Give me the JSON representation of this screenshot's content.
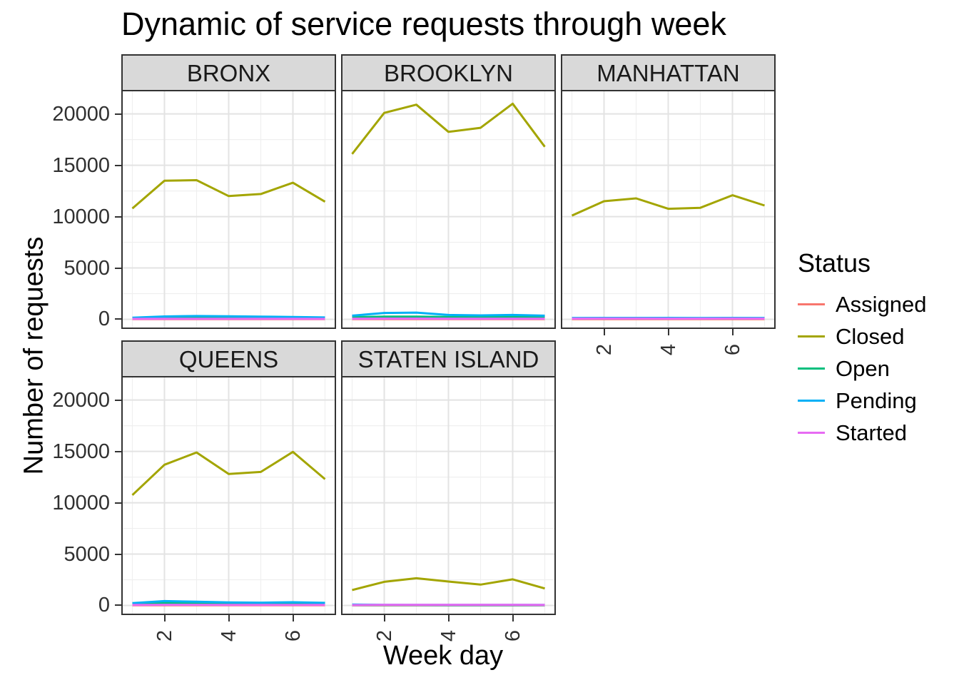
{
  "title": "Dynamic of service requests through week",
  "axes": {
    "x_label": "Week day",
    "y_label": "Number of requests"
  },
  "legend": {
    "title": "Status",
    "entries": [
      {
        "label": "Assigned",
        "color": "#F8766D"
      },
      {
        "label": "Closed",
        "color": "#A3A500"
      },
      {
        "label": "Open",
        "color": "#00BF7D"
      },
      {
        "label": "Pending",
        "color": "#00B0F6"
      },
      {
        "label": "Started",
        "color": "#E76BF3"
      }
    ]
  },
  "chart_data": {
    "type": "line",
    "title": "Dynamic of service requests through week",
    "xlabel": "Week day",
    "ylabel": "Number of requests",
    "x": [
      1,
      2,
      3,
      4,
      5,
      6,
      7
    ],
    "xlim": [
      0.7,
      7.3
    ],
    "ylim": [
      -800,
      22200
    ],
    "x_major_ticks": [
      2,
      4,
      6
    ],
    "x_minor_ticks": [
      1,
      3,
      5,
      7
    ],
    "y_major_ticks": [
      0,
      5000,
      10000,
      15000,
      20000
    ],
    "y_minor_ticks": [
      2500,
      7500,
      12500,
      17500
    ],
    "grid": true,
    "legend_position": "right",
    "facets": [
      {
        "name": "BRONX",
        "series": [
          {
            "name": "Assigned",
            "values": [
              10,
              15,
              15,
              15,
              15,
              10,
              10
            ]
          },
          {
            "name": "Closed",
            "values": [
              10800,
              13500,
              13550,
              12000,
              12200,
              13300,
              11450
            ]
          },
          {
            "name": "Open",
            "values": [
              90,
              130,
              140,
              130,
              120,
              110,
              90
            ]
          },
          {
            "name": "Pending",
            "values": [
              150,
              280,
              320,
              300,
              260,
              230,
              180
            ]
          },
          {
            "name": "Started",
            "values": [
              40,
              50,
              55,
              50,
              50,
              45,
              40
            ]
          }
        ]
      },
      {
        "name": "BROOKLYN",
        "series": [
          {
            "name": "Assigned",
            "values": [
              15,
              20,
              20,
              15,
              15,
              15,
              15
            ]
          },
          {
            "name": "Closed",
            "values": [
              16100,
              20100,
              20900,
              18250,
              18650,
              21000,
              16800
            ]
          },
          {
            "name": "Open",
            "values": [
              200,
              260,
              260,
              230,
              220,
              230,
              200
            ]
          },
          {
            "name": "Pending",
            "values": [
              350,
              620,
              650,
              420,
              380,
              420,
              350
            ]
          },
          {
            "name": "Started",
            "values": [
              60,
              70,
              70,
              65,
              65,
              65,
              60
            ]
          }
        ]
      },
      {
        "name": "MANHATTAN",
        "series": [
          {
            "name": "Assigned",
            "values": [
              10,
              10,
              10,
              10,
              10,
              10,
              10
            ]
          },
          {
            "name": "Closed",
            "values": [
              10100,
              11500,
              11780,
              10760,
              10860,
              12080,
              11080
            ]
          },
          {
            "name": "Open",
            "values": [
              90,
              95,
              95,
              90,
              90,
              95,
              90
            ]
          },
          {
            "name": "Pending",
            "values": [
              130,
              140,
              140,
              135,
              130,
              140,
              130
            ]
          },
          {
            "name": "Started",
            "values": [
              70,
              75,
              75,
              70,
              70,
              75,
              70
            ]
          }
        ]
      },
      {
        "name": "QUEENS",
        "series": [
          {
            "name": "Assigned",
            "values": [
              10,
              15,
              15,
              10,
              10,
              10,
              10
            ]
          },
          {
            "name": "Closed",
            "values": [
              10750,
              13700,
              14900,
              12800,
              13000,
              14950,
              12300
            ]
          },
          {
            "name": "Open",
            "values": [
              140,
              240,
              210,
              180,
              170,
              190,
              160
            ]
          },
          {
            "name": "Pending",
            "values": [
              220,
              420,
              360,
              290,
              270,
              310,
              250
            ]
          },
          {
            "name": "Started",
            "values": [
              50,
              60,
              60,
              55,
              55,
              55,
              50
            ]
          }
        ]
      },
      {
        "name": "STATEN ISLAND",
        "series": [
          {
            "name": "Assigned",
            "values": [
              5,
              5,
              5,
              5,
              5,
              5,
              5
            ]
          },
          {
            "name": "Closed",
            "values": [
              1500,
              2300,
              2650,
              2330,
              2030,
              2540,
              1650
            ]
          },
          {
            "name": "Open",
            "values": [
              30,
              35,
              35,
              30,
              30,
              30,
              30
            ]
          },
          {
            "name": "Pending",
            "values": [
              85,
              70,
              60,
              60,
              60,
              60,
              55
            ]
          },
          {
            "name": "Started",
            "values": [
              35,
              65,
              60,
              60,
              60,
              60,
              55
            ]
          }
        ]
      }
    ]
  }
}
